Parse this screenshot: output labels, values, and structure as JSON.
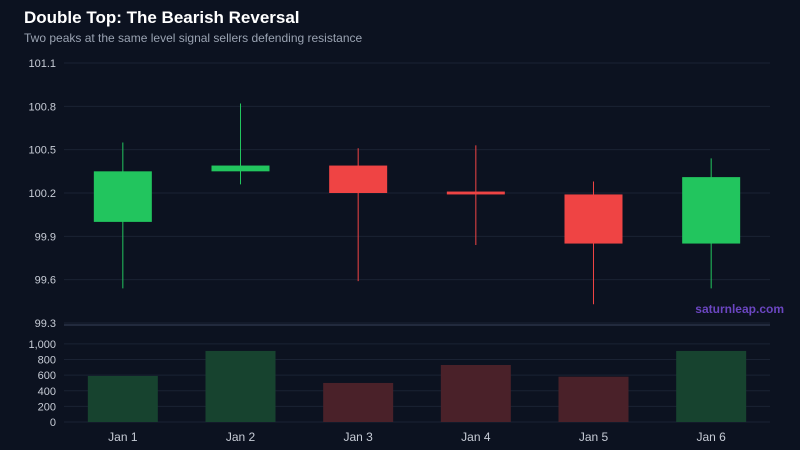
{
  "colors": {
    "background": "#0c1220",
    "up": "#22c55e",
    "down": "#ef4444",
    "up_volume": "#17432f",
    "down_volume": "#4a2129",
    "grid": "#1a2233",
    "watermark": "#6b46c1"
  },
  "watermark": "saturnleap.com",
  "chart_data": {
    "type": "candlestick",
    "title": "Double Top: The Bearish Reversal",
    "subtitle": "Two peaks at the same level signal sellers defending resistance",
    "categories": [
      "Jan 1",
      "Jan 2",
      "Jan 3",
      "Jan 4",
      "Jan 5",
      "Jan 6"
    ],
    "ohlc": [
      {
        "open": 100.0,
        "high": 100.55,
        "low": 99.54,
        "close": 100.35
      },
      {
        "open": 100.35,
        "high": 100.82,
        "low": 100.26,
        "close": 100.39
      },
      {
        "open": 100.39,
        "high": 100.51,
        "low": 99.59,
        "close": 100.2
      },
      {
        "open": 100.21,
        "high": 100.53,
        "low": 99.84,
        "close": 100.19
      },
      {
        "open": 100.19,
        "high": 100.28,
        "low": 99.43,
        "close": 99.85
      },
      {
        "open": 99.85,
        "high": 100.44,
        "low": 99.54,
        "close": 100.31
      }
    ],
    "volume": [
      590,
      910,
      500,
      730,
      580,
      910
    ],
    "price_ticks": [
      "101.1",
      "100.8",
      "100.5",
      "100.2",
      "99.9",
      "99.6",
      "99.3"
    ],
    "volume_ticks": [
      "1,000",
      "800",
      "600",
      "400",
      "200",
      "0"
    ],
    "price_range": [
      99.3,
      101.1
    ],
    "volume_range": [
      0,
      1050
    ],
    "grid": true
  }
}
